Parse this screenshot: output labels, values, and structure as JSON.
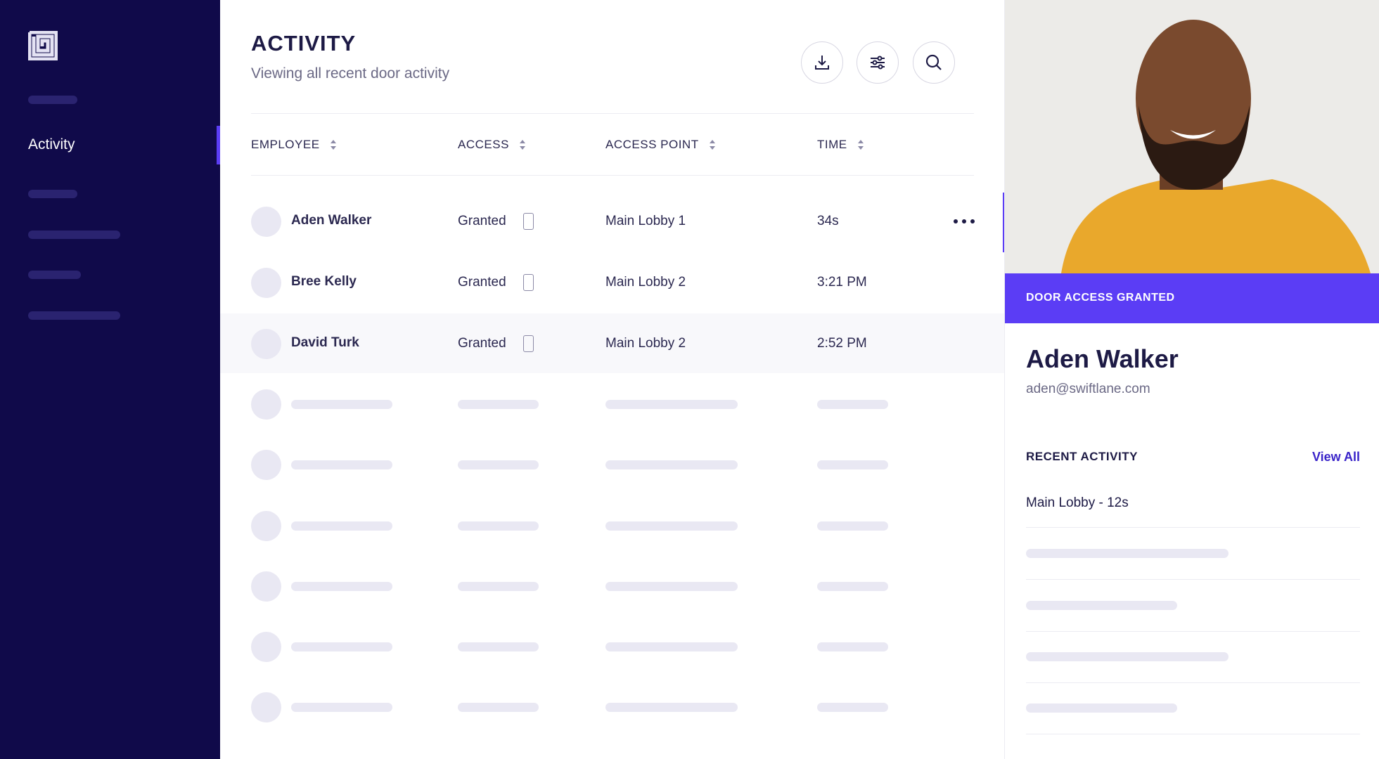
{
  "sidebar": {
    "nav": [
      "Activity"
    ]
  },
  "header": {
    "title": "ACTIVITY",
    "subtitle": "Viewing all recent door activity"
  },
  "table": {
    "columns": [
      "EMPLOYEE",
      "ACCESS",
      "ACCESS POINT",
      "TIME"
    ],
    "rows": [
      [
        "Aden Walker",
        "Granted",
        "Main Lobby 1",
        "34s"
      ],
      [
        "Bree Kelly",
        "Granted",
        "Main Lobby 2",
        "3:21 PM"
      ],
      [
        "David Turk",
        "Granted",
        "Main Lobby 2",
        "2:52 PM"
      ]
    ]
  },
  "detail": {
    "badge": "DOOR ACCESS GRANTED",
    "name": "Aden Walker",
    "email": "aden@swiftlane.com",
    "recent_title": "RECENT ACTIVITY",
    "view_all": "View All",
    "items": [
      "Main Lobby - 12s"
    ]
  }
}
